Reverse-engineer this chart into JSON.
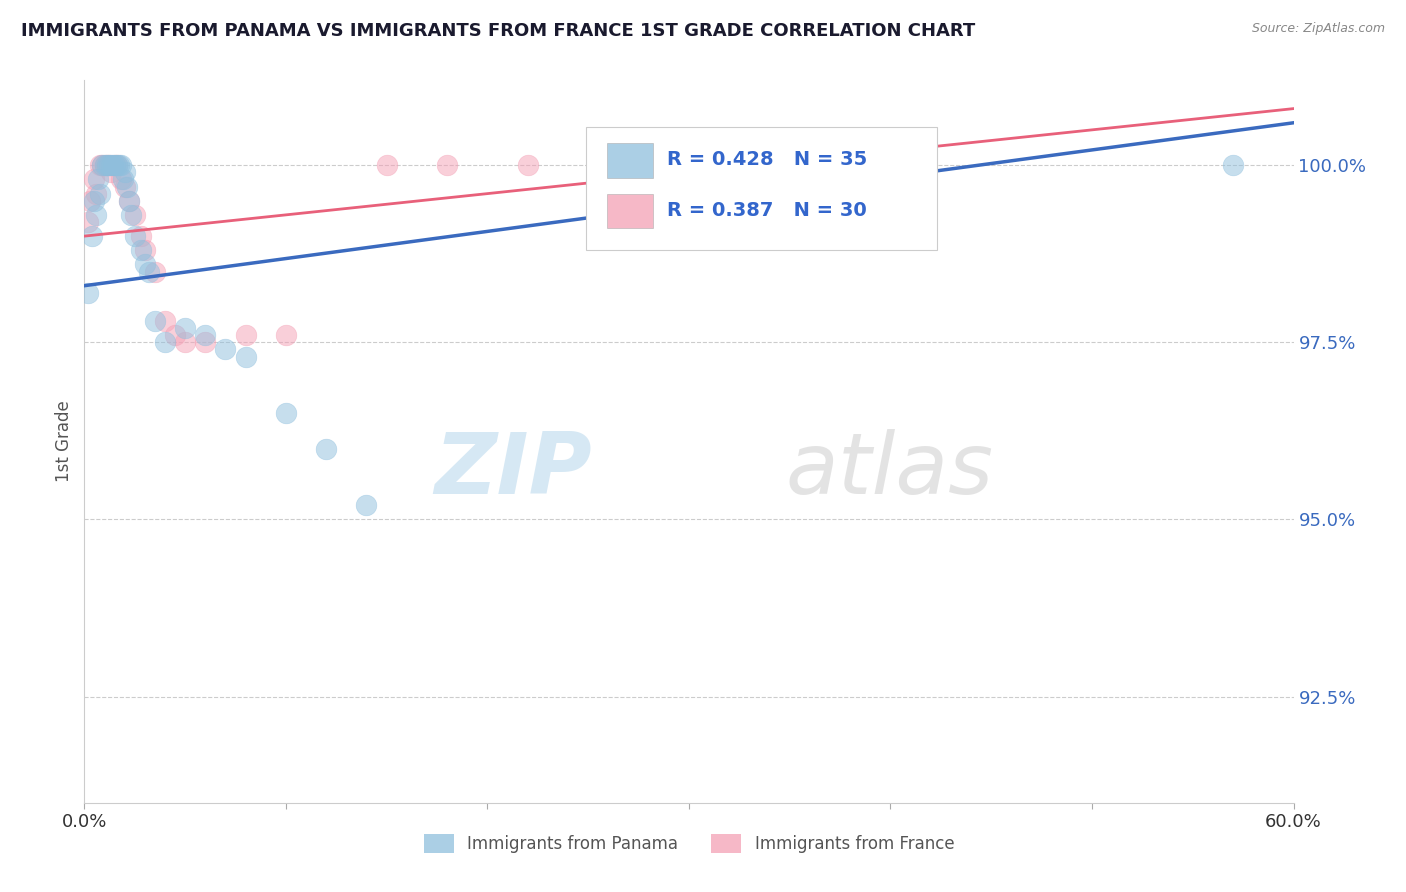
{
  "title": "IMMIGRANTS FROM PANAMA VS IMMIGRANTS FROM FRANCE 1ST GRADE CORRELATION CHART",
  "source": "Source: ZipAtlas.com",
  "ylabel": "1st Grade",
  "legend_blue_label": "Immigrants from Panama",
  "legend_pink_label": "Immigrants from France",
  "legend_blue_R": "R = 0.428",
  "legend_blue_N": "N = 35",
  "legend_pink_R": "R = 0.387",
  "legend_pink_N": "N = 30",
  "blue_color": "#8fbfdd",
  "pink_color": "#f4a0b5",
  "blue_line_color": "#3a6abf",
  "pink_line_color": "#e8607a",
  "legend_text_color": "#3366cc",
  "title_color": "#1a1a2e",
  "blue_scatter_x": [
    0.2,
    0.4,
    0.5,
    0.6,
    0.7,
    0.8,
    0.9,
    1.0,
    1.1,
    1.2,
    1.3,
    1.4,
    1.5,
    1.6,
    1.7,
    1.8,
    1.9,
    2.0,
    2.1,
    2.2,
    2.3,
    2.5,
    2.8,
    3.0,
    3.2,
    3.5,
    4.0,
    5.0,
    6.0,
    7.0,
    8.0,
    10.0,
    12.0,
    14.0,
    57.0
  ],
  "blue_scatter_y": [
    98.2,
    99.0,
    99.5,
    99.3,
    99.8,
    99.6,
    100.0,
    100.0,
    100.0,
    100.0,
    100.0,
    100.0,
    100.0,
    100.0,
    100.0,
    100.0,
    99.8,
    99.9,
    99.7,
    99.5,
    99.3,
    99.0,
    98.8,
    98.6,
    98.5,
    97.8,
    97.5,
    97.7,
    97.6,
    97.4,
    97.3,
    96.5,
    96.0,
    95.2,
    100.0
  ],
  "pink_scatter_x": [
    0.2,
    0.3,
    0.5,
    0.6,
    0.8,
    0.9,
    1.0,
    1.1,
    1.2,
    1.3,
    1.5,
    1.6,
    1.8,
    2.0,
    2.2,
    2.5,
    2.8,
    3.0,
    3.5,
    4.0,
    4.5,
    5.0,
    6.0,
    8.0,
    10.0,
    15.0,
    18.0,
    22.0,
    28.0,
    35.0
  ],
  "pink_scatter_y": [
    99.2,
    99.5,
    99.8,
    99.6,
    100.0,
    100.0,
    100.0,
    100.0,
    100.0,
    99.9,
    100.0,
    100.0,
    99.8,
    99.7,
    99.5,
    99.3,
    99.0,
    98.8,
    98.5,
    97.8,
    97.6,
    97.5,
    97.5,
    97.6,
    97.6,
    100.0,
    100.0,
    100.0,
    100.0,
    100.0
  ],
  "xlim": [
    0.0,
    60.0
  ],
  "ylim": [
    91.0,
    101.2
  ],
  "yticks": [
    100.0,
    97.5,
    95.0,
    92.5
  ],
  "xtick_positions": [
    0.0,
    10.0,
    20.0,
    30.0,
    40.0,
    50.0,
    60.0
  ],
  "xtick_left": 0.0,
  "xtick_right": 60.0,
  "blue_trend_x": [
    0.0,
    60.0
  ],
  "blue_trend_y": [
    98.3,
    100.6
  ],
  "pink_trend_x": [
    0.0,
    60.0
  ],
  "pink_trend_y": [
    99.0,
    100.8
  ]
}
